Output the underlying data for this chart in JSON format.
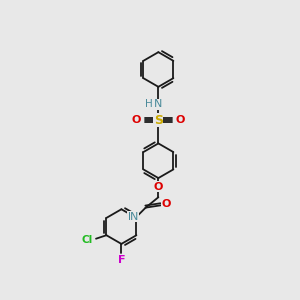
{
  "bg_color": "#e8e8e8",
  "bond_color": "#1a1a1a",
  "atom_colors": {
    "N": "#4a8a9a",
    "S": "#ccaa00",
    "O": "#dd0000",
    "Cl": "#22bb22",
    "F": "#cc00cc",
    "H": "#4a8a9a",
    "C": "#1a1a1a"
  },
  "lw": 1.3,
  "dbo": 0.013
}
